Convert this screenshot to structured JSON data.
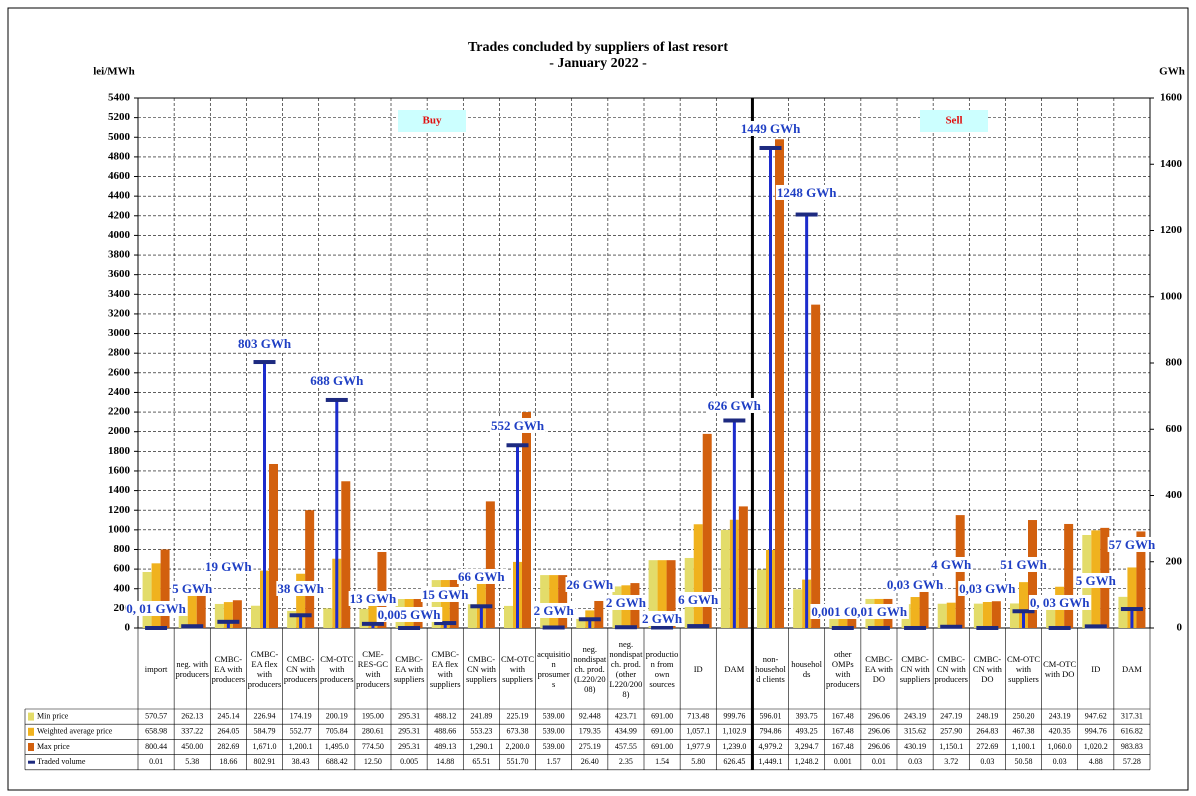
{
  "chart_data": {
    "type": "bar",
    "title": "Trades concluded by suppliers of last resort",
    "subtitle": "- January 2022 -",
    "y_label": "lei/MWh",
    "y2_label": "GWh",
    "buy_label": "Buy",
    "sell_label": "Sell",
    "categories": [
      "import",
      "neg. with producers",
      "CMBC-EA with producers",
      "CMBC-EA flex with producers",
      "CMBC-CN with producers",
      "CM-OTC with producers",
      "CME-RES-GC with producers",
      "CMBC-EA with suppliers",
      "CMBC-EA flex with suppliers",
      "CMBC-CN with suppliers",
      "CM-OTC with suppliers",
      "acquisition prosumers",
      "neg. nondispatch. prod. (L220/2008)",
      "neg. nondispatch. prod.(other L220/2008)",
      "production from own sources",
      "ID",
      "DAM",
      "non-household clients",
      "households",
      "other OMPs with producers",
      "CMBC-EA with DO",
      "CMBC-CN with suppliers",
      "CMBC-CN with producers",
      "CMBC-CN with DO",
      "CM-OTC with suppliers",
      "CM-OTC with DO",
      "ID",
      "DAM"
    ],
    "series": [
      {
        "name": "Min price",
        "color": "#e3dc6a",
        "values": [
          570.57,
          262.13,
          245.14,
          226.94,
          174.19,
          200.19,
          195.0,
          295.31,
          488.12,
          241.89,
          225.19,
          539.0,
          92.448,
          423.71,
          691.0,
          713.48,
          999.76,
          596.01,
          393.75,
          167.48,
          296.06,
          243.19,
          247.19,
          248.19,
          250.2,
          243.19,
          947.62,
          317.31
        ],
        "value_labels": [
          "570.57",
          "262.13",
          "245.14",
          "226.94",
          "174.19",
          "200.19",
          "195.00",
          "295.31",
          "488.12",
          "241.89",
          "225.19",
          "539.00",
          "92.448",
          "423.71",
          "691.00",
          "713.48",
          "999.76",
          "596.01",
          "393.75",
          "167.48",
          "296.06",
          "243.19",
          "247.19",
          "248.19",
          "250.20",
          "243.19",
          "947.62",
          "317.31"
        ]
      },
      {
        "name": "Weighted average price",
        "color": "#f0b21e",
        "values": [
          658.98,
          337.22,
          264.05,
          584.79,
          552.77,
          705.84,
          280.61,
          295.31,
          488.66,
          553.23,
          673.38,
          539.0,
          179.35,
          434.99,
          691.0,
          1057.1,
          1102.9,
          794.86,
          493.25,
          167.48,
          296.06,
          315.62,
          257.9,
          264.83,
          467.38,
          420.35,
          994.76,
          616.82
        ],
        "value_labels": [
          "658.98",
          "337.22",
          "264.05",
          "584.79",
          "552.77",
          "705.84",
          "280.61",
          "295.31",
          "488.66",
          "553.23",
          "673.38",
          "539.00",
          "179.35",
          "434.99",
          "691.00",
          "1,057.1",
          "1,102.9",
          "794.86",
          "493.25",
          "167.48",
          "296.06",
          "315.62",
          "257.90",
          "264.83",
          "467.38",
          "420.35",
          "994.76",
          "616.82"
        ]
      },
      {
        "name": "Max price",
        "color": "#d2600e",
        "values": [
          800.44,
          450.0,
          282.69,
          1671.0,
          1200.1,
          1495.0,
          774.5,
          295.31,
          489.13,
          1290.1,
          2200.0,
          539.0,
          275.19,
          457.55,
          691.0,
          1977.9,
          1239.0,
          4979.2,
          3294.7,
          167.48,
          296.06,
          430.19,
          1150.1,
          272.69,
          1100.1,
          1060.0,
          1020.2,
          983.83
        ],
        "value_labels": [
          "800.44",
          "450.00",
          "282.69",
          "1,671.0",
          "1,200.1",
          "1,495.0",
          "774.50",
          "295.31",
          "489.13",
          "1,290.1",
          "2,200.0",
          "539.00",
          "275.19",
          "457.55",
          "691.00",
          "1,977.9",
          "1,239.0",
          "4,979.2",
          "3,294.7",
          "167.48",
          "296.06",
          "430.19",
          "1,150.1",
          "272.69",
          "1,100.1",
          "1,060.0",
          "1,020.2",
          "983.83"
        ]
      },
      {
        "name": "Traded volume",
        "color": "#1c2ccc",
        "axis": "y2",
        "values": [
          0.01,
          5.38,
          18.66,
          802.91,
          38.43,
          688.42,
          12.5,
          0.005,
          14.88,
          65.51,
          551.7,
          1.57,
          26.4,
          2.35,
          1.54,
          5.8,
          626.45,
          1449.1,
          1248.2,
          0.001,
          0.01,
          0.03,
          3.72,
          0.03,
          50.58,
          0.03,
          4.88,
          57.28
        ],
        "value_labels": [
          "0.01",
          "5.38",
          "18.66",
          "802.91",
          "38.43",
          "688.42",
          "12.50",
          "0.005",
          "14.88",
          "65.51",
          "551.70",
          "1.57",
          "26.40",
          "2.35",
          "1.54",
          "5.80",
          "626.45",
          "1,449.1",
          "1,248.2",
          "0.001",
          "0.01",
          "0.03",
          "3.72",
          "0.03",
          "50.58",
          "0.03",
          "4.88",
          "57.28"
        ]
      }
    ],
    "annotations": [
      "0, 01 GWh",
      "5 GWh",
      "19 GWh",
      "803 GWh",
      "38 GWh",
      "688 GWh",
      "13 GWh",
      "0,005 GWh",
      "15 GWh",
      "66 GWh",
      "552 GWh",
      "2 GWh",
      "26 GWh",
      "2 GWh",
      "2 GWh",
      "6 GWh",
      "626 GWh",
      "1449 GWh",
      "1248 GWh",
      "0,001 GWh",
      "0,01 GWh",
      "0,03 GWh",
      "4 GWh",
      "0,03 GWh",
      "51 GWh",
      "0, 03 GWh",
      "5 GWh",
      "57 GWh"
    ],
    "ylim": [
      0,
      5400
    ],
    "yticks": [
      0,
      200,
      400,
      600,
      800,
      1000,
      1200,
      1400,
      1600,
      1800,
      2000,
      2200,
      2400,
      2600,
      2800,
      3000,
      3200,
      3400,
      3600,
      3800,
      4000,
      4200,
      4400,
      4600,
      4800,
      5000,
      5200,
      5400
    ],
    "y2lim": [
      0,
      1600
    ],
    "y2ticks": [
      0,
      200,
      400,
      600,
      800,
      1000,
      1200,
      1400,
      1600
    ],
    "grid": true
  }
}
